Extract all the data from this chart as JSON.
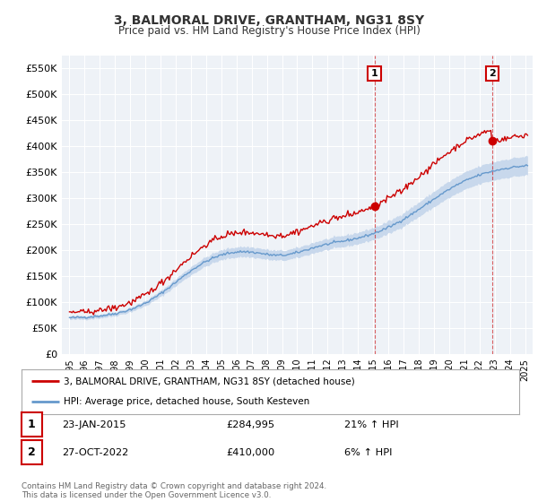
{
  "title": "3, BALMORAL DRIVE, GRANTHAM, NG31 8SY",
  "subtitle": "Price paid vs. HM Land Registry's House Price Index (HPI)",
  "ylim": [
    0,
    575000
  ],
  "yticks": [
    0,
    50000,
    100000,
    150000,
    200000,
    250000,
    300000,
    350000,
    400000,
    450000,
    500000,
    550000
  ],
  "ytick_labels": [
    "£0",
    "£50K",
    "£100K",
    "£150K",
    "£200K",
    "£250K",
    "£300K",
    "£350K",
    "£400K",
    "£450K",
    "£500K",
    "£550K"
  ],
  "background_color": "#ffffff",
  "plot_bg_color": "#eef2f7",
  "grid_color": "#ffffff",
  "line1_color": "#cc0000",
  "line2_color": "#6699cc",
  "fill_color": "#c8d8ec",
  "sale1_t": 2015.083,
  "sale1_price": 284995,
  "sale2_t": 2022.833,
  "sale2_price": 410000,
  "legend1": "3, BALMORAL DRIVE, GRANTHAM, NG31 8SY (detached house)",
  "legend2": "HPI: Average price, detached house, South Kesteven",
  "table_row1_num": "1",
  "table_row1_date": "23-JAN-2015",
  "table_row1_price": "£284,995",
  "table_row1_hpi": "21% ↑ HPI",
  "table_row2_num": "2",
  "table_row2_date": "27-OCT-2022",
  "table_row2_price": "£410,000",
  "table_row2_hpi": "6% ↑ HPI",
  "footer": "Contains HM Land Registry data © Crown copyright and database right 2024.\nThis data is licensed under the Open Government Licence v3.0.",
  "title_color": "#333333",
  "box_edge_color": "#cc0000"
}
